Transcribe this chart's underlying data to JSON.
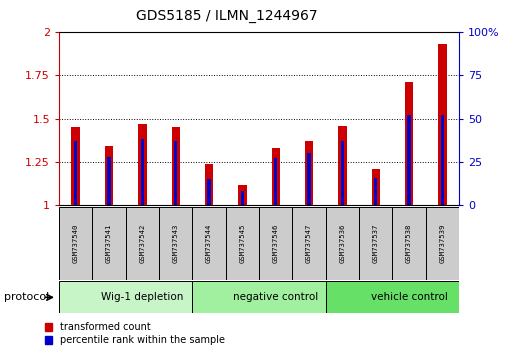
{
  "title": "GDS5185 / ILMN_1244967",
  "samples": [
    "GSM737540",
    "GSM737541",
    "GSM737542",
    "GSM737543",
    "GSM737544",
    "GSM737545",
    "GSM737546",
    "GSM737547",
    "GSM737536",
    "GSM737537",
    "GSM737538",
    "GSM737539"
  ],
  "red_values": [
    1.45,
    1.34,
    1.47,
    1.45,
    1.24,
    1.12,
    1.33,
    1.37,
    1.46,
    1.21,
    1.71,
    1.93
  ],
  "blue_pct": [
    37,
    28,
    38,
    37,
    15,
    8,
    27,
    30,
    37,
    16,
    52,
    52
  ],
  "groups": [
    {
      "label": "Wig-1 depletion",
      "start": 0,
      "end": 4,
      "color": "#c8f5c8"
    },
    {
      "label": "negative control",
      "start": 4,
      "end": 8,
      "color": "#a0f0a0"
    },
    {
      "label": "vehicle control",
      "start": 8,
      "end": 12,
      "color": "#66e066"
    }
  ],
  "ylim_left": [
    1.0,
    2.0
  ],
  "ylim_right": [
    0,
    100
  ],
  "yticks_left": [
    1.0,
    1.25,
    1.5,
    1.75,
    2.0
  ],
  "ytick_labels_left": [
    "1",
    "1.25",
    "1.5",
    "1.75",
    "2"
  ],
  "yticks_right": [
    0,
    25,
    50,
    75,
    100
  ],
  "ytick_labels_right": [
    "0",
    "25",
    "50",
    "75",
    "100%"
  ],
  "left_axis_color": "#cc0000",
  "right_axis_color": "#0000cc",
  "red_color": "#cc0000",
  "blue_color": "#0000cc",
  "red_bar_width": 0.25,
  "blue_bar_width": 0.1,
  "grid_color": "black",
  "grid_lw": 0.7,
  "legend_red": "transformed count",
  "legend_blue": "percentile rank within the sample",
  "protocol_label": "protocol",
  "sample_box_color": "#cccccc",
  "spine_color": "#000000"
}
